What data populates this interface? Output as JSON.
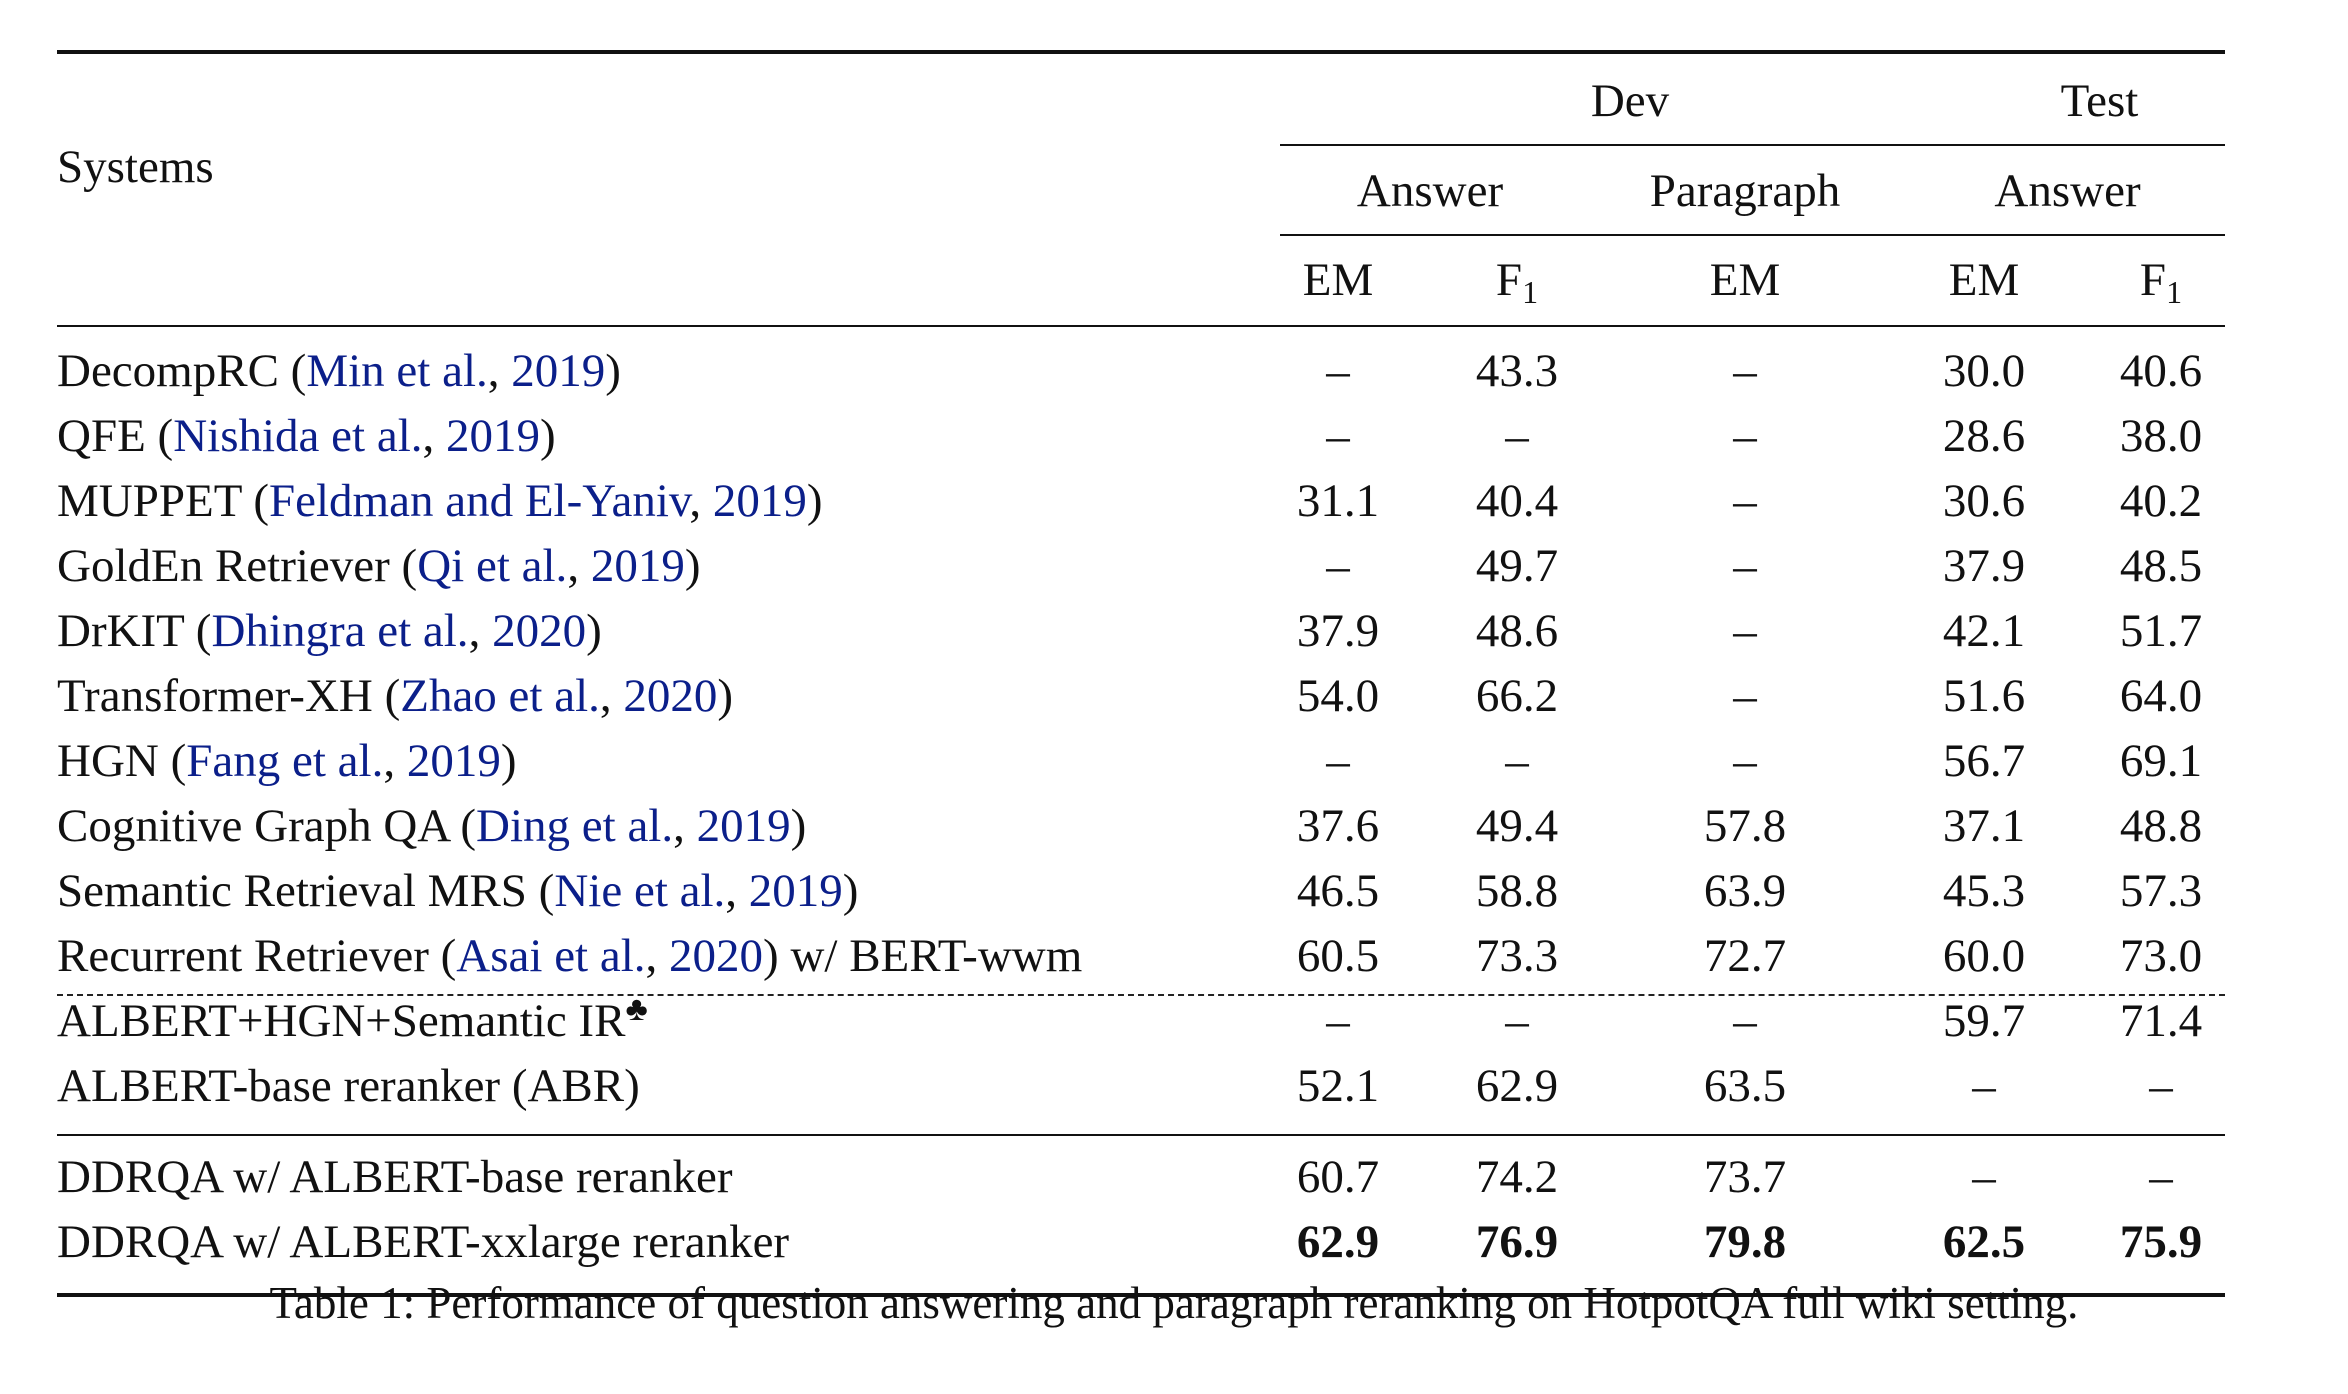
{
  "header": {
    "systems_label": "Systems",
    "dev_label": "Dev",
    "test_label": "Test",
    "answer_label": "Answer",
    "paragraph_label": "Paragraph",
    "test_answer_label": "Answer",
    "em_label": "EM",
    "f_label": "F",
    "f_sub": "1"
  },
  "rows": [
    {
      "name": "DecompRC (",
      "cite1": "Min et al.",
      "sep": ", ",
      "cite2": "2019",
      "tail": ")",
      "dev_em": "–",
      "dev_f1": "43.3",
      "para_em": "–",
      "test_em": "30.0",
      "test_f1": "40.6"
    },
    {
      "name": "QFE (",
      "cite1": "Nishida et al.",
      "sep": ", ",
      "cite2": "2019",
      "tail": ")",
      "dev_em": "–",
      "dev_f1": "–",
      "para_em": "–",
      "test_em": "28.6",
      "test_f1": "38.0"
    },
    {
      "name": "MUPPET (",
      "cite1": "Feldman and El-Yaniv",
      "sep": ", ",
      "cite2": "2019",
      "tail": ")",
      "dev_em": "31.1",
      "dev_f1": "40.4",
      "para_em": "–",
      "test_em": "30.6",
      "test_f1": "40.2"
    },
    {
      "name": "GoldEn Retriever (",
      "cite1": "Qi et al.",
      "sep": ", ",
      "cite2": "2019",
      "tail": ")",
      "dev_em": "–",
      "dev_f1": "49.7",
      "para_em": "–",
      "test_em": "37.9",
      "test_f1": "48.5"
    },
    {
      "name": "DrKIT (",
      "cite1": "Dhingra et al.",
      "sep": ", ",
      "cite2": "2020",
      "tail": ")",
      "dev_em": "37.9",
      "dev_f1": "48.6",
      "para_em": "–",
      "test_em": "42.1",
      "test_f1": "51.7"
    },
    {
      "name": "Transformer-XH (",
      "cite1": "Zhao et al.",
      "sep": ", ",
      "cite2": "2020",
      "tail": ")",
      "dev_em": "54.0",
      "dev_f1": "66.2",
      "para_em": "–",
      "test_em": "51.6",
      "test_f1": "64.0"
    },
    {
      "name": "HGN (",
      "cite1": "Fang et al.",
      "sep": ", ",
      "cite2": "2019",
      "tail": ")",
      "dev_em": "–",
      "dev_f1": "–",
      "para_em": "–",
      "test_em": "56.7",
      "test_f1": "69.1"
    },
    {
      "name": "Cognitive Graph QA (",
      "cite1": "Ding et al.",
      "sep": ", ",
      "cite2": "2019",
      "tail": ")",
      "dev_em": "37.6",
      "dev_f1": "49.4",
      "para_em": "57.8",
      "test_em": "37.1",
      "test_f1": "48.8"
    },
    {
      "name": "Semantic Retrieval MRS (",
      "cite1": "Nie et al.",
      "sep": ", ",
      "cite2": "2019",
      "tail": ")",
      "dev_em": "46.5",
      "dev_f1": "58.8",
      "para_em": "63.9",
      "test_em": "45.3",
      "test_f1": "57.3"
    },
    {
      "name": "Recurrent Retriever (",
      "cite1": "Asai et al.",
      "sep": ", ",
      "cite2": "2020",
      "tail": ") w/ BERT-wwm",
      "dev_em": "60.5",
      "dev_f1": "73.3",
      "para_em": "72.7",
      "test_em": "60.0",
      "test_f1": "73.0"
    },
    {
      "name": "ALBERT+HGN+Semantic IR",
      "club": "♣",
      "dev_em": "–",
      "dev_f1": "–",
      "para_em": "–",
      "test_em": "59.7",
      "test_f1": "71.4"
    },
    {
      "name": "ALBERT-base reranker (ABR)",
      "dev_em": "52.1",
      "dev_f1": "62.9",
      "para_em": "63.5",
      "test_em": "–",
      "test_f1": "–"
    },
    {
      "name": "DDRQA w/ ALBERT-base reranker",
      "dev_em": "60.7",
      "dev_f1": "74.2",
      "para_em": "73.7",
      "test_em": "–",
      "test_f1": "–"
    },
    {
      "name": "DDRQA w/ ALBERT-xxlarge reranker",
      "dev_em": "62.9",
      "dev_f1": "76.9",
      "para_em": "79.8",
      "test_em": "62.5",
      "test_f1": "75.9"
    }
  ],
  "caption": "Table 1: Performance of question answering and paragraph reranking on HotpotQA full wiki setting."
}
